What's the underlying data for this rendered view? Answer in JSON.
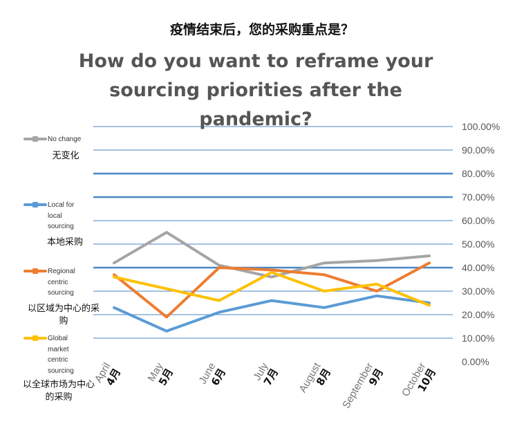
{
  "title_cn": "疫情结束后，您的采购重点是？",
  "title_en": "How do you want to reframe your sourcing priorities after the pandemic?",
  "colors": {
    "no_change": "#a5a5a5",
    "local": "#5b9bd5",
    "regional": "#ed7d31",
    "global": "#ffc000",
    "gridline": "#4a86c5"
  },
  "legend": [
    {
      "en": "No change",
      "cn": "无变化"
    },
    {
      "en": "Local for local sourcing",
      "cn": "本地采购"
    },
    {
      "en": "Regional centric sourcing",
      "cn": "以区域为中心的采购"
    },
    {
      "en": "Global market centric sourcing",
      "cn": "以全球市场为中心的采购"
    }
  ],
  "chart_data": {
    "type": "line",
    "title": "How do you want to reframe your sourcing priorities after the pandemic?",
    "categories": [
      "April 4月",
      "May 5月",
      "June 6月",
      "July 7月",
      "August 8月",
      "September 9月",
      "October 10月"
    ],
    "category_en": [
      "April",
      "May",
      "June",
      "July",
      "August",
      "September",
      "October"
    ],
    "category_cn": [
      "4月",
      "5月",
      "6月",
      "7月",
      "8月",
      "9月",
      "10月"
    ],
    "y_tick_labels": [
      "0.00%",
      "10.00%",
      "20.00%",
      "30.00%",
      "40.00%",
      "50.00%",
      "60.00%",
      "70.00%",
      "80.00%",
      "90.00%",
      "100.00%"
    ],
    "ylim": [
      0,
      1
    ],
    "series": [
      {
        "name": "No change",
        "values": [
          0.42,
          0.55,
          0.41,
          0.36,
          0.42,
          0.43,
          0.45
        ]
      },
      {
        "name": "Local for local sourcing",
        "values": [
          0.23,
          0.13,
          0.21,
          0.26,
          0.23,
          0.28,
          0.25
        ]
      },
      {
        "name": "Regional centric sourcing",
        "values": [
          0.37,
          0.19,
          0.4,
          0.39,
          0.37,
          0.3,
          0.42
        ]
      },
      {
        "name": "Global market centric sourcing",
        "values": [
          0.36,
          0.31,
          0.26,
          0.38,
          0.3,
          0.33,
          0.24
        ]
      }
    ],
    "legend_position": "left"
  }
}
